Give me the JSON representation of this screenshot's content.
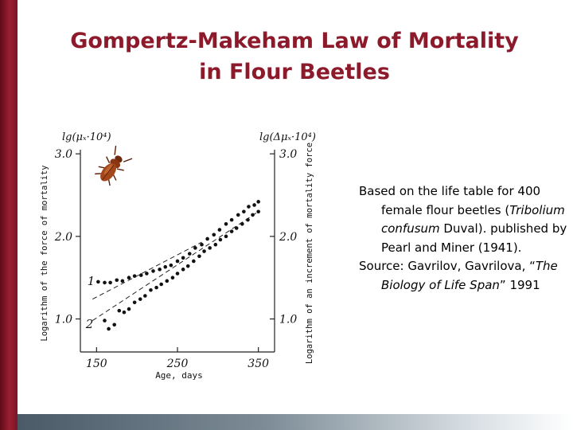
{
  "colors": {
    "accent": "#8c1a2b",
    "sidebar": "#7a1424",
    "ink": "#111111"
  },
  "slide": {
    "title_line1": "Gompertz-Makeham Law of Mortality",
    "title_line2": "in Flour Beetles"
  },
  "caption": {
    "p1_before": "Based on the life table for 400 female flour beetles (",
    "p1_italic": "Tribolium confusum",
    "p1_after": " Duval). published by Pearl and Miner (1941).",
    "p2_before": "Source: Gavrilov, Gavrilova, “",
    "p2_italic": "The Biology of Life Span",
    "p2_after": "” 1991"
  },
  "icon": "flour-beetle-icon",
  "chart_data": {
    "type": "scatter",
    "xlabel": "Age, days",
    "ylabel_left": "Logarithm of the force of mortality",
    "ylabel_right": "Logarithm of an increment of mortality force",
    "left_unit": "lg(μₓ·10⁴)",
    "right_unit": "lg(Δμₓ·10⁴)",
    "xlim": [
      130,
      370
    ],
    "ylim": [
      0.6,
      3.05
    ],
    "x_ticks": [
      150,
      250,
      350
    ],
    "x_tick_labels": [
      "150",
      "250",
      "350"
    ],
    "y_ticks": [
      1.0,
      2.0,
      3.0
    ],
    "y_tick_labels": [
      "1.0",
      "2.0",
      "3.0"
    ],
    "grid": false,
    "series": [
      {
        "name": "1",
        "x": [
          152,
          160,
          167,
          175,
          182,
          190,
          197,
          205,
          212,
          220,
          228,
          235,
          242,
          250,
          257,
          265,
          272,
          280,
          287,
          295,
          302,
          310,
          317,
          325,
          332,
          338,
          345,
          350
        ],
        "y": [
          1.45,
          1.44,
          1.44,
          1.47,
          1.46,
          1.5,
          1.52,
          1.53,
          1.55,
          1.58,
          1.6,
          1.63,
          1.65,
          1.7,
          1.74,
          1.79,
          1.86,
          1.9,
          1.97,
          2.02,
          2.08,
          2.15,
          2.2,
          2.26,
          2.3,
          2.36,
          2.38,
          2.42
        ]
      },
      {
        "name": "2",
        "x": [
          160,
          165,
          172,
          178,
          184,
          190,
          197,
          204,
          210,
          217,
          224,
          230,
          237,
          244,
          250,
          257,
          263,
          270,
          277,
          283,
          290,
          297,
          303,
          310,
          317,
          323,
          330,
          337,
          343,
          350
        ],
        "y": [
          0.98,
          0.88,
          0.93,
          1.1,
          1.08,
          1.12,
          1.2,
          1.24,
          1.28,
          1.35,
          1.38,
          1.42,
          1.46,
          1.5,
          1.55,
          1.6,
          1.64,
          1.7,
          1.76,
          1.82,
          1.86,
          1.9,
          1.96,
          2.0,
          2.06,
          2.1,
          2.15,
          2.2,
          2.26,
          2.3
        ]
      }
    ],
    "fit_lines": [
      {
        "x": [
          145,
          280
        ],
        "y": [
          1.24,
          1.93
        ]
      },
      {
        "x": [
          145,
          350
        ],
        "y": [
          0.98,
          2.3
        ]
      }
    ],
    "curve_labels": [
      {
        "text": "1",
        "x": 148,
        "y": 1.46
      },
      {
        "text": "2",
        "x": 146,
        "y": 0.94
      }
    ]
  }
}
